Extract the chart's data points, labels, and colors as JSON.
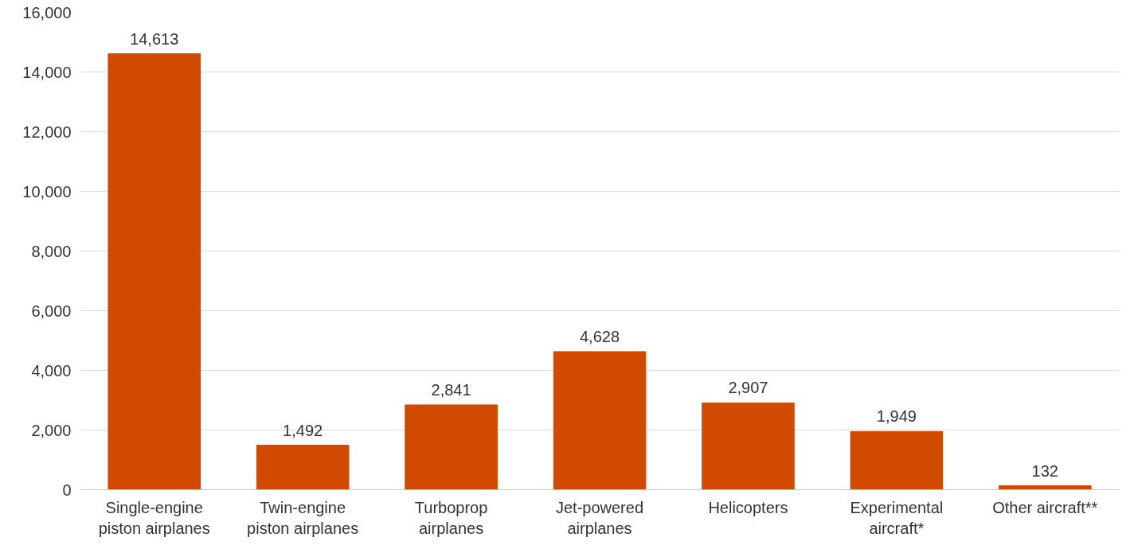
{
  "chart_data": {
    "type": "bar",
    "categories": [
      "Single-engine piston airplanes",
      "Twin-engine piston airplanes",
      "Turboprop airplanes",
      "Jet-powered airplanes",
      "Helicopters",
      "Experimental aircraft*",
      "Other aircraft**"
    ],
    "values": [
      14613,
      1492,
      2841,
      4628,
      2907,
      1949,
      132
    ],
    "color": "#d04a02",
    "ylim": [
      0,
      16000
    ],
    "yticks": [
      {
        "value": 0,
        "label": "0"
      },
      {
        "value": 2000,
        "label": "2,000"
      },
      {
        "value": 4000,
        "label": "4,000"
      },
      {
        "value": 6000,
        "label": "6,000"
      },
      {
        "value": 8000,
        "label": "8,000"
      },
      {
        "value": 10000,
        "label": "10,000"
      },
      {
        "value": 12000,
        "label": "12,000"
      },
      {
        "value": 14000,
        "label": "14,000"
      },
      {
        "value": 16000,
        "label": "16,000"
      }
    ],
    "value_labels": [
      "14,613",
      "1,492",
      "2,841",
      "4,628",
      "2,907",
      "1,949",
      "132"
    ],
    "grid": "y"
  }
}
